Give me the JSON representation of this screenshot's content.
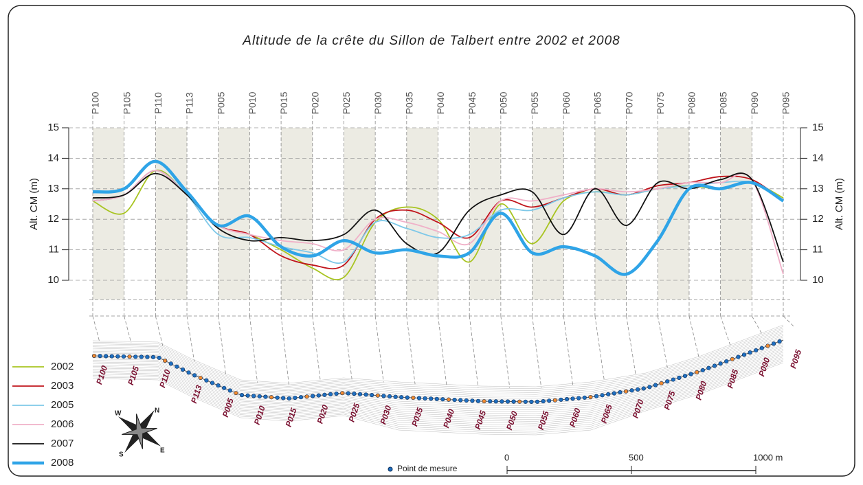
{
  "chart_data": {
    "type": "line",
    "title": "Altitude de la crête du Sillon de Talbert entre 2002 et 2008",
    "categories": [
      "P100",
      "P105",
      "P110",
      "P113",
      "P005",
      "P010",
      "P015",
      "P020",
      "P025",
      "P030",
      "P035",
      "P040",
      "P045",
      "P050",
      "P055",
      "P060",
      "P065",
      "P070",
      "P075",
      "P080",
      "P085",
      "P090",
      "P095"
    ],
    "series": [
      {
        "name": "2002",
        "color": "#a8c421",
        "values": [
          12.6,
          12.2,
          13.6,
          12.8,
          11.8,
          11.5,
          11.0,
          10.4,
          10.1,
          11.9,
          12.4,
          12.0,
          10.6,
          12.5,
          11.2,
          12.6,
          12.9,
          12.8,
          13.0,
          13.1,
          13.0,
          13.2,
          12.7
        ]
      },
      {
        "name": "2003",
        "color": "#c0141b",
        "values": [
          12.6,
          12.8,
          13.6,
          12.8,
          11.8,
          11.5,
          10.8,
          10.5,
          10.5,
          12.0,
          12.3,
          11.9,
          11.4,
          12.6,
          12.4,
          12.7,
          13.0,
          12.8,
          13.1,
          13.2,
          13.4,
          13.3,
          12.6
        ]
      },
      {
        "name": "2005",
        "color": "#7ec8e8",
        "values": [
          12.6,
          12.8,
          13.6,
          12.8,
          11.5,
          11.4,
          11.1,
          10.9,
          10.6,
          11.9,
          11.7,
          11.4,
          11.5,
          12.3,
          12.3,
          12.7,
          12.9,
          12.8,
          13.0,
          13.1,
          13.2,
          13.2,
          12.6
        ]
      },
      {
        "name": "2006",
        "color": "#f0b0c8",
        "values": [
          12.6,
          12.8,
          13.6,
          12.8,
          11.8,
          11.5,
          11.3,
          11.2,
          11.0,
          12.0,
          11.9,
          11.6,
          11.2,
          12.6,
          12.6,
          12.8,
          13.0,
          12.9,
          13.0,
          13.2,
          13.2,
          13.3,
          10.2
        ]
      },
      {
        "name": "2007",
        "color": "#111111",
        "values": [
          12.7,
          12.8,
          13.5,
          12.8,
          11.7,
          11.3,
          11.4,
          11.3,
          11.5,
          12.3,
          11.2,
          10.9,
          12.3,
          12.8,
          12.9,
          11.5,
          13.0,
          11.8,
          13.2,
          13.0,
          13.3,
          13.3,
          10.6
        ]
      },
      {
        "name": "2008",
        "color": "#2fa4e7",
        "values": [
          12.9,
          13.0,
          13.9,
          12.9,
          11.8,
          12.1,
          11.1,
          10.8,
          11.3,
          10.9,
          11.0,
          10.8,
          10.9,
          12.2,
          10.9,
          11.1,
          10.8,
          10.2,
          11.3,
          13.0,
          13.0,
          13.2,
          12.6
        ]
      }
    ],
    "ylabel": "Alt. CM (m)",
    "ylim": [
      10,
      15
    ],
    "yticks": [
      10,
      11,
      12,
      13,
      14,
      15
    ],
    "y2lim": [
      10,
      15
    ],
    "y2ticks": [
      10,
      11,
      12,
      13,
      14,
      15
    ],
    "point_legend": "Point de mesure",
    "scale_ticks": [
      0,
      500,
      {
        "value": 1000,
        "label": "1000 m"
      }
    ],
    "compass": [
      "N",
      "E",
      "S",
      "W"
    ]
  }
}
